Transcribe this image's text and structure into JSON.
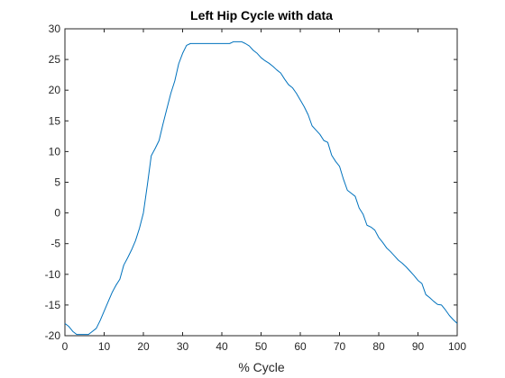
{
  "colors": {
    "line": "#0072bd",
    "axis": "#262626",
    "background": "#ffffff"
  },
  "chart_data": {
    "type": "line",
    "title": "Left Hip Cycle with data",
    "xlabel": "% Cycle",
    "ylabel": "",
    "xlim": [
      0,
      100
    ],
    "ylim": [
      -20,
      30
    ],
    "grid": false,
    "box": true,
    "xticks": [
      0,
      10,
      20,
      30,
      40,
      50,
      60,
      70,
      80,
      90,
      100
    ],
    "yticks": [
      -20,
      -15,
      -10,
      -5,
      0,
      5,
      10,
      15,
      20,
      25,
      30
    ],
    "series": [
      {
        "x": [
          0,
          1,
          2,
          3,
          4,
          5,
          6,
          7,
          8,
          9,
          10,
          11,
          12,
          13,
          14,
          15,
          16,
          17,
          18,
          19,
          20,
          21,
          22,
          23,
          24,
          25,
          26,
          27,
          28,
          29,
          30,
          31,
          32,
          33,
          34,
          35,
          36,
          37,
          38,
          39,
          40,
          41,
          42,
          43,
          44,
          45,
          46,
          47,
          48,
          49,
          50,
          51,
          52,
          53,
          54,
          55,
          56,
          57,
          58,
          59,
          60,
          61,
          62,
          63,
          64,
          65,
          66,
          67,
          68,
          69,
          70,
          71,
          72,
          73,
          74,
          75,
          76,
          77,
          78,
          79,
          80,
          81,
          82,
          83,
          84,
          85,
          86,
          87,
          88,
          89,
          90,
          91,
          92,
          93,
          94,
          95,
          96,
          97,
          98,
          99,
          100
        ],
        "y": [
          -18.0,
          -18.5,
          -19.3,
          -19.8,
          -19.8,
          -19.8,
          -19.8,
          -19.3,
          -18.8,
          -17.5,
          -16.0,
          -14.5,
          -13.0,
          -11.8,
          -10.8,
          -8.5,
          -7.3,
          -6.0,
          -4.5,
          -2.5,
          0.0,
          4.5,
          9.3,
          10.5,
          11.8,
          14.5,
          17.0,
          19.5,
          21.5,
          24.3,
          26.0,
          27.3,
          27.6,
          27.6,
          27.6,
          27.6,
          27.6,
          27.6,
          27.6,
          27.6,
          27.6,
          27.6,
          27.6,
          27.9,
          27.9,
          27.9,
          27.6,
          27.2,
          26.5,
          26.0,
          25.3,
          24.8,
          24.4,
          23.9,
          23.3,
          22.8,
          21.8,
          20.9,
          20.4,
          19.5,
          18.4,
          17.3,
          16.0,
          14.2,
          13.5,
          12.8,
          11.8,
          11.5,
          9.4,
          8.4,
          7.6,
          5.5,
          3.7,
          3.2,
          2.7,
          0.8,
          -0.2,
          -2.0,
          -2.3,
          -2.8,
          -4.0,
          -4.8,
          -5.7,
          -6.3,
          -7.0,
          -7.7,
          -8.2,
          -8.8,
          -9.5,
          -10.2,
          -11.0,
          -11.5,
          -13.3,
          -13.8,
          -14.4,
          -14.9,
          -15.0,
          -15.8,
          -16.7,
          -17.4,
          -18.0
        ]
      }
    ]
  }
}
